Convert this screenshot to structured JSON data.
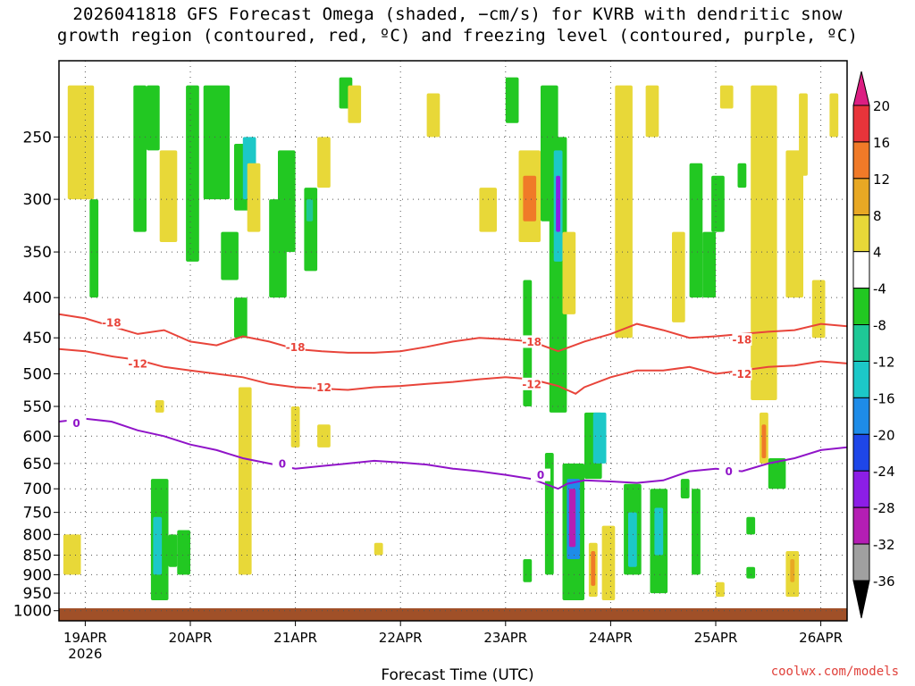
{
  "title": {
    "line1": "2026041818 GFS Forecast Omega (shaded, −cm/s) for KVRB with dendritic snow",
    "line2": "growth region (contoured, red, ºC) and freezing level (contoured, purple, ºC)"
  },
  "credit": "coolwx.com/models",
  "chart_data": {
    "type": "heatmap",
    "xlabel": "Forecast Time (UTC)",
    "ylabel": "",
    "x_ticks": [
      "19APR",
      "20APR",
      "21APR",
      "22APR",
      "23APR",
      "24APR",
      "25APR",
      "26APR"
    ],
    "x_year_label": "2026",
    "x_range_hours": [
      -6,
      174
    ],
    "y_ticks": [
      250,
      300,
      350,
      400,
      450,
      500,
      550,
      600,
      650,
      700,
      750,
      800,
      850,
      900,
      950,
      1000
    ],
    "y_range_hPa": [
      200,
      1030
    ],
    "y_scale": "log",
    "grid": true,
    "colorbar": {
      "labels": [
        "20",
        "16",
        "12",
        "8",
        "4",
        "-4",
        "-8",
        "-12",
        "-16",
        "-20",
        "-24",
        "-28",
        "-32",
        "-36"
      ],
      "colors": [
        "#e8343a",
        "#f07a28",
        "#e8a824",
        "#e8d838",
        "#ffffff",
        "#22c822",
        "#1ec896",
        "#1cc8c8",
        "#1e8ce8",
        "#1e46e8",
        "#8c1ee6",
        "#b41eb4",
        "#a0a0a0"
      ],
      "top_arrow_color": "#dc1e82",
      "bottom_arrow_color": "#000000"
    },
    "contours": {
      "dgz_minus18": {
        "label": "-18",
        "color": "#e8443a",
        "points": [
          [
            -6,
            420
          ],
          [
            0,
            425
          ],
          [
            6,
            435
          ],
          [
            12,
            445
          ],
          [
            18,
            440
          ],
          [
            24,
            455
          ],
          [
            30,
            460
          ],
          [
            36,
            448
          ],
          [
            42,
            455
          ],
          [
            48,
            465
          ],
          [
            54,
            468
          ],
          [
            60,
            470
          ],
          [
            66,
            470
          ],
          [
            72,
            468
          ],
          [
            78,
            462
          ],
          [
            84,
            455
          ],
          [
            90,
            450
          ],
          [
            96,
            452
          ],
          [
            102,
            455
          ],
          [
            108,
            468
          ],
          [
            114,
            455
          ],
          [
            120,
            445
          ],
          [
            126,
            432
          ],
          [
            132,
            440
          ],
          [
            138,
            450
          ],
          [
            144,
            448
          ],
          [
            150,
            445
          ],
          [
            156,
            442
          ],
          [
            162,
            440
          ],
          [
            168,
            432
          ],
          [
            174,
            435
          ]
        ],
        "label_at": [
          [
            6,
            430
          ],
          [
            48,
            462
          ],
          [
            102,
            455
          ],
          [
            150,
            452
          ]
        ]
      },
      "dgz_minus12": {
        "label": "-12",
        "color": "#e8443a",
        "points": [
          [
            -6,
            465
          ],
          [
            0,
            468
          ],
          [
            6,
            475
          ],
          [
            12,
            480
          ],
          [
            18,
            490
          ],
          [
            24,
            495
          ],
          [
            30,
            500
          ],
          [
            36,
            505
          ],
          [
            42,
            515
          ],
          [
            48,
            520
          ],
          [
            54,
            522
          ],
          [
            60,
            524
          ],
          [
            66,
            520
          ],
          [
            72,
            518
          ],
          [
            78,
            515
          ],
          [
            84,
            512
          ],
          [
            90,
            508
          ],
          [
            96,
            505
          ],
          [
            102,
            508
          ],
          [
            108,
            518
          ],
          [
            112,
            530
          ],
          [
            114,
            520
          ],
          [
            120,
            505
          ],
          [
            126,
            495
          ],
          [
            132,
            495
          ],
          [
            138,
            490
          ],
          [
            144,
            500
          ],
          [
            150,
            495
          ],
          [
            156,
            490
          ],
          [
            162,
            488
          ],
          [
            168,
            482
          ],
          [
            174,
            485
          ]
        ],
        "label_at": [
          [
            12,
            485
          ],
          [
            54,
            520
          ],
          [
            102,
            515
          ],
          [
            150,
            500
          ]
        ]
      },
      "freezing_0": {
        "label": "0",
        "color": "#9014c8",
        "points": [
          [
            -6,
            575
          ],
          [
            0,
            570
          ],
          [
            6,
            575
          ],
          [
            12,
            590
          ],
          [
            18,
            600
          ],
          [
            24,
            615
          ],
          [
            30,
            625
          ],
          [
            36,
            640
          ],
          [
            42,
            650
          ],
          [
            48,
            660
          ],
          [
            54,
            655
          ],
          [
            60,
            650
          ],
          [
            66,
            645
          ],
          [
            72,
            648
          ],
          [
            78,
            652
          ],
          [
            84,
            660
          ],
          [
            90,
            665
          ],
          [
            96,
            672
          ],
          [
            102,
            680
          ],
          [
            108,
            700
          ],
          [
            110,
            690
          ],
          [
            114,
            683
          ],
          [
            120,
            685
          ],
          [
            126,
            688
          ],
          [
            132,
            683
          ],
          [
            138,
            665
          ],
          [
            144,
            660
          ],
          [
            150,
            665
          ],
          [
            156,
            650
          ],
          [
            162,
            640
          ],
          [
            168,
            625
          ],
          [
            174,
            620
          ]
        ],
        "label_at": [
          [
            -2,
            577
          ],
          [
            45,
            650
          ],
          [
            104,
            672
          ],
          [
            147,
            665
          ]
        ]
      }
    },
    "omega_cells": [
      {
        "t0": -4,
        "t1": 2,
        "p0": 215,
        "p1": 300,
        "v": 6
      },
      {
        "t0": -5,
        "t1": -1,
        "p0": 800,
        "p1": 900,
        "v": 6
      },
      {
        "t0": 1,
        "t1": 3,
        "p0": 300,
        "p1": 400,
        "v": -6
      },
      {
        "t0": 11,
        "t1": 14,
        "p0": 215,
        "p1": 330,
        "v": -6
      },
      {
        "t0": 14,
        "t1": 17,
        "p0": 215,
        "p1": 260,
        "v": -6
      },
      {
        "t0": 17,
        "t1": 21,
        "p0": 260,
        "p1": 340,
        "v": 6
      },
      {
        "t0": 16,
        "t1": 18,
        "p0": 540,
        "p1": 560,
        "v": 6
      },
      {
        "t0": 15,
        "t1": 19,
        "p0": 680,
        "p1": 970,
        "v": -6
      },
      {
        "t0": 15.5,
        "t1": 17.5,
        "p0": 760,
        "p1": 900,
        "v": -14
      },
      {
        "t0": 19,
        "t1": 21,
        "p0": 800,
        "p1": 880,
        "v": -6
      },
      {
        "t0": 21,
        "t1": 24,
        "p0": 790,
        "p1": 900,
        "v": -6
      },
      {
        "t0": 23,
        "t1": 26,
        "p0": 215,
        "p1": 360,
        "v": -6
      },
      {
        "t0": 27,
        "t1": 33,
        "p0": 215,
        "p1": 300,
        "v": -6
      },
      {
        "t0": 31,
        "t1": 35,
        "p0": 330,
        "p1": 380,
        "v": -6
      },
      {
        "t0": 34,
        "t1": 39,
        "p0": 255,
        "p1": 310,
        "v": -6
      },
      {
        "t0": 34,
        "t1": 37,
        "p0": 400,
        "p1": 450,
        "v": -6
      },
      {
        "t0": 36,
        "t1": 39,
        "p0": 250,
        "p1": 300,
        "v": -12
      },
      {
        "t0": 35,
        "t1": 38,
        "p0": 520,
        "p1": 900,
        "v": 6
      },
      {
        "t0": 37,
        "t1": 40,
        "p0": 270,
        "p1": 330,
        "v": 6
      },
      {
        "t0": 42,
        "t1": 46,
        "p0": 300,
        "p1": 400,
        "v": -6
      },
      {
        "t0": 44,
        "t1": 48,
        "p0": 260,
        "p1": 350,
        "v": -6
      },
      {
        "t0": 47,
        "t1": 49,
        "p0": 550,
        "p1": 620,
        "v": 6
      },
      {
        "t0": 50,
        "t1": 53,
        "p0": 290,
        "p1": 370,
        "v": -6
      },
      {
        "t0": 50.5,
        "t1": 52,
        "p0": 300,
        "p1": 320,
        "v": -10
      },
      {
        "t0": 53,
        "t1": 56,
        "p0": 250,
        "p1": 290,
        "v": 6
      },
      {
        "t0": 53,
        "t1": 56,
        "p0": 580,
        "p1": 620,
        "v": 6
      },
      {
        "t0": 58,
        "t1": 61,
        "p0": 210,
        "p1": 230,
        "v": -6
      },
      {
        "t0": 60,
        "t1": 63,
        "p0": 215,
        "p1": 240,
        "v": 6
      },
      {
        "t0": 66,
        "t1": 68,
        "p0": 820,
        "p1": 850,
        "v": 6
      },
      {
        "t0": 78,
        "t1": 81,
        "p0": 220,
        "p1": 250,
        "v": 6
      },
      {
        "t0": 90,
        "t1": 94,
        "p0": 290,
        "p1": 330,
        "v": 6
      },
      {
        "t0": 96,
        "t1": 99,
        "p0": 210,
        "p1": 240,
        "v": -6
      },
      {
        "t0": 99,
        "t1": 104,
        "p0": 260,
        "p1": 340,
        "v": 6
      },
      {
        "t0": 100,
        "t1": 103,
        "p0": 280,
        "p1": 320,
        "v": 12
      },
      {
        "t0": 100,
        "t1": 102,
        "p0": 380,
        "p1": 550,
        "v": -6
      },
      {
        "t0": 100,
        "t1": 102,
        "p0": 860,
        "p1": 920,
        "v": -6
      },
      {
        "t0": 104,
        "t1": 108,
        "p0": 215,
        "p1": 320,
        "v": -6
      },
      {
        "t0": 106,
        "t1": 110,
        "p0": 250,
        "p1": 560,
        "v": -6
      },
      {
        "t0": 107,
        "t1": 109,
        "p0": 260,
        "p1": 360,
        "v": -14
      },
      {
        "t0": 107.5,
        "t1": 108.5,
        "p0": 280,
        "p1": 330,
        "v": -24
      },
      {
        "t0": 109,
        "t1": 112,
        "p0": 330,
        "p1": 420,
        "v": 6
      },
      {
        "t0": 105,
        "t1": 107,
        "p0": 630,
        "p1": 900,
        "v": -6
      },
      {
        "t0": 109,
        "t1": 114,
        "p0": 650,
        "p1": 970,
        "v": -6
      },
      {
        "t0": 110,
        "t1": 113,
        "p0": 680,
        "p1": 860,
        "v": -16
      },
      {
        "t0": 110.5,
        "t1": 112,
        "p0": 700,
        "p1": 830,
        "v": -28
      },
      {
        "t0": 114,
        "t1": 118,
        "p0": 560,
        "p1": 680,
        "v": -6
      },
      {
        "t0": 115,
        "t1": 117,
        "p0": 820,
        "p1": 960,
        "v": 6
      },
      {
        "t0": 115.5,
        "t1": 116.5,
        "p0": 840,
        "p1": 930,
        "v": 13
      },
      {
        "t0": 116,
        "t1": 119,
        "p0": 560,
        "p1": 650,
        "v": -12
      },
      {
        "t0": 118,
        "t1": 121,
        "p0": 780,
        "p1": 970,
        "v": 6
      },
      {
        "t0": 121,
        "t1": 125,
        "p0": 215,
        "p1": 450,
        "v": 6
      },
      {
        "t0": 123,
        "t1": 127,
        "p0": 690,
        "p1": 900,
        "v": -6
      },
      {
        "t0": 124,
        "t1": 126,
        "p0": 750,
        "p1": 880,
        "v": -12
      },
      {
        "t0": 128,
        "t1": 131,
        "p0": 215,
        "p1": 250,
        "v": 6
      },
      {
        "t0": 129,
        "t1": 133,
        "p0": 700,
        "p1": 950,
        "v": -6
      },
      {
        "t0": 130,
        "t1": 132,
        "p0": 740,
        "p1": 850,
        "v": -12
      },
      {
        "t0": 134,
        "t1": 137,
        "p0": 330,
        "p1": 430,
        "v": 6
      },
      {
        "t0": 136,
        "t1": 138,
        "p0": 680,
        "p1": 720,
        "v": -6
      },
      {
        "t0": 138,
        "t1": 141,
        "p0": 270,
        "p1": 400,
        "v": -6
      },
      {
        "t0": 138.5,
        "t1": 140.5,
        "p0": 700,
        "p1": 900,
        "v": -6
      },
      {
        "t0": 141,
        "t1": 144,
        "p0": 330,
        "p1": 400,
        "v": -6
      },
      {
        "t0": 143,
        "t1": 146,
        "p0": 280,
        "p1": 330,
        "v": -6
      },
      {
        "t0": 145,
        "t1": 148,
        "p0": 215,
        "p1": 230,
        "v": 6
      },
      {
        "t0": 144,
        "t1": 146,
        "p0": 920,
        "p1": 960,
        "v": 6
      },
      {
        "t0": 149,
        "t1": 151,
        "p0": 270,
        "p1": 290,
        "v": -6
      },
      {
        "t0": 151,
        "t1": 153,
        "p0": 760,
        "p1": 800,
        "v": -6
      },
      {
        "t0": 151,
        "t1": 153,
        "p0": 880,
        "p1": 910,
        "v": -6
      },
      {
        "t0": 152,
        "t1": 158,
        "p0": 215,
        "p1": 540,
        "v": 6
      },
      {
        "t0": 154,
        "t1": 156,
        "p0": 560,
        "p1": 650,
        "v": 6
      },
      {
        "t0": 154.5,
        "t1": 155.5,
        "p0": 580,
        "p1": 640,
        "v": 12
      },
      {
        "t0": 156,
        "t1": 160,
        "p0": 640,
        "p1": 700,
        "v": -6
      },
      {
        "t0": 160,
        "t1": 164,
        "p0": 260,
        "p1": 400,
        "v": 6
      },
      {
        "t0": 160,
        "t1": 163,
        "p0": 840,
        "p1": 960,
        "v": 6
      },
      {
        "t0": 161,
        "t1": 162,
        "p0": 860,
        "p1": 920,
        "v": 10
      },
      {
        "t0": 163,
        "t1": 165,
        "p0": 220,
        "p1": 280,
        "v": 6
      },
      {
        "t0": 166,
        "t1": 169,
        "p0": 380,
        "p1": 450,
        "v": 6
      },
      {
        "t0": 170,
        "t1": 172,
        "p0": 220,
        "p1": 250,
        "v": 6
      }
    ],
    "terrain_band_color": "#a05028"
  }
}
